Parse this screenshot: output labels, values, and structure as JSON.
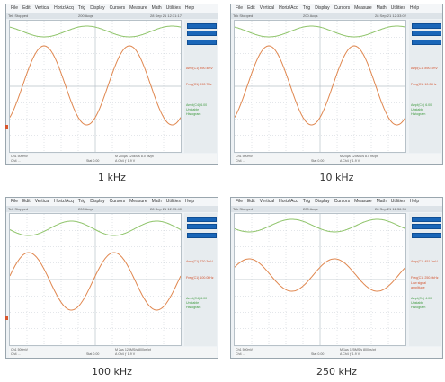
{
  "menu": [
    "File",
    "Edit",
    "Vertical",
    "Horiz/Acq",
    "Trig",
    "Display",
    "Cursors",
    "Measure",
    "Math",
    "Utilities",
    "Help"
  ],
  "colors": {
    "ch1": "#8fc46a",
    "ch2": "#e0874f",
    "button": "#1a66b8",
    "grid": "#b9c2c9"
  },
  "panels": [
    {
      "caption": "1 kHz",
      "toolbar": {
        "left": "Tek  Stopped",
        "mid": "200 Acqs",
        "right": "28 Sep 21 12:31:17"
      },
      "measures": [
        {
          "label": "Amp(C1)",
          "value": "890.4mV"
        },
        {
          "label": "Freq(C1)",
          "value": "992.7Hz"
        },
        {
          "label": "Ampl(C4)",
          "value": "6.00"
        }
      ],
      "measure_note": [
        "Unstable",
        "Histogram"
      ],
      "status": {
        "ch": "Ch1  500mV",
        "ch2": "Ch4 ...",
        "time": "M 200µs 125kS/s  8.0 ns/pt",
        "trig": "A  Ch4 ƒ  1.9 V",
        "pos": "Stat  0.00"
      },
      "waves": {
        "green_top_y": 6,
        "green_amp": 6,
        "orange_mid_y": 72,
        "orange_amp": 44,
        "orange_phase": 0.1
      }
    },
    {
      "caption": "10 kHz",
      "toolbar": {
        "left": "Tek  Stopped",
        "mid": "200 Acqs",
        "right": "28 Sep 21 12:33:02"
      },
      "measures": [
        {
          "label": "Amp(C1)",
          "value": "890.4mV"
        },
        {
          "label": "Freq(C1)",
          "value": "10.0kHz"
        },
        {
          "label": "Ampl(C4)",
          "value": "6.00"
        }
      ],
      "measure_note": [
        "Unstable",
        "Histogram"
      ],
      "status": {
        "ch": "Ch1  500mV",
        "ch2": "Ch4 ...",
        "time": "M 20µs 125MS/s  8.0 ns/pt",
        "trig": "A  Ch4 ƒ  1.9 V",
        "pos": "Stat  0.00"
      },
      "waves": {
        "green_top_y": 6,
        "green_amp": 6,
        "orange_mid_y": 72,
        "orange_amp": 44,
        "orange_phase": 0.1
      }
    },
    {
      "caption": "100 kHz",
      "toolbar": {
        "left": "Tek  Stopped",
        "mid": "200 Acqs",
        "right": "28 Sep 21 12:35:40"
      },
      "measures": [
        {
          "label": "Amp(C1)",
          "value": "720.3mV"
        },
        {
          "label": "Freq(C1)",
          "value": "100.0kHz"
        },
        {
          "label": "Ampl(C4)",
          "value": "6.00"
        }
      ],
      "measure_note": [
        "Unstable",
        "Histogram"
      ],
      "status": {
        "ch": "Ch1  500mV",
        "ch2": "Ch4 ...",
        "time": "M 2µs 125MS/s  800ps/pt",
        "trig": "A  Ch4 ƒ  1.9 V",
        "pos": "Stat  0.00"
      },
      "waves": {
        "green_top_y": 8,
        "green_amp": 8,
        "orange_mid_y": 75,
        "orange_amp": 32,
        "orange_phase": 0.28
      }
    },
    {
      "caption": "250 kHz",
      "toolbar": {
        "left": "Tek  Stopped",
        "mid": "200 Acqs",
        "right": "28 Sep 21 12:36:55"
      },
      "measures": [
        {
          "label": "Amp(C1)",
          "value": "451.2mV"
        },
        {
          "label": "Freq(C1)",
          "value": "250.0kHz"
        },
        {
          "label": "Ampl(C4)",
          "value": "4.00"
        }
      ],
      "measure_note": [
        "Low signal",
        "amplitude",
        "Unstable",
        "Histogram"
      ],
      "status": {
        "ch": "Ch1  500mV",
        "ch2": "Ch4 ...",
        "time": "M 1µs 125MS/s  800ps/pt",
        "trig": "A  Ch4 ƒ  1.9 V",
        "pos": "Stat  0.00"
      },
      "waves": {
        "green_top_y": 6,
        "green_amp": 7,
        "orange_mid_y": 68,
        "orange_amp": 18,
        "orange_phase": 0.33
      }
    }
  ]
}
